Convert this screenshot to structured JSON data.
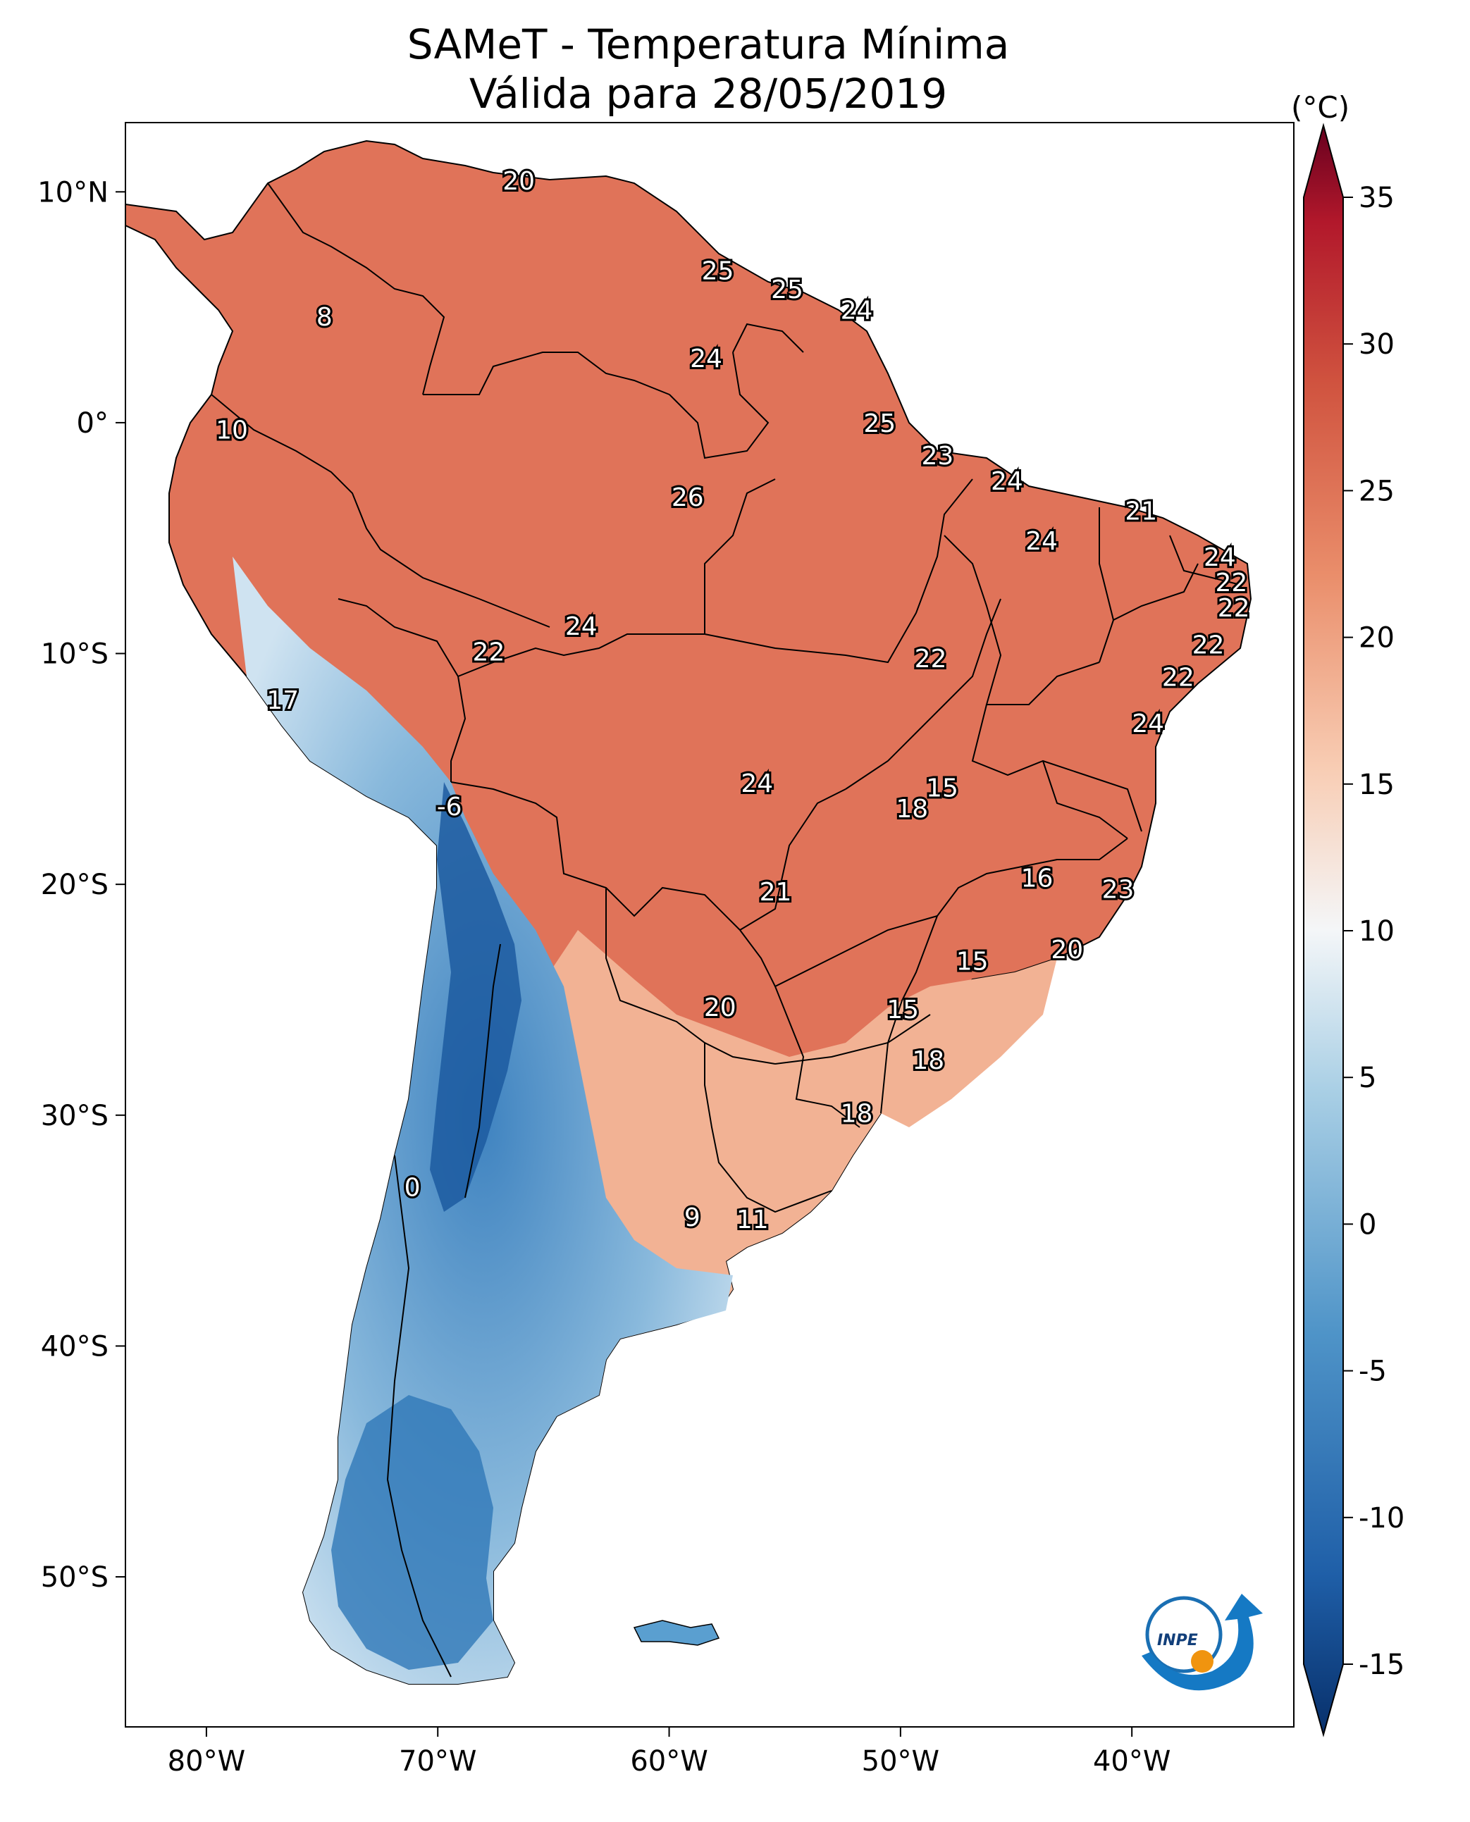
{
  "title": {
    "line1": "SAMeT - Temperatura Mínima",
    "line2": "Válida para 28/05/2019"
  },
  "colorbar": {
    "unit": "(°C)",
    "min": -15,
    "max": 35,
    "ticks": [
      "35",
      "30",
      "25",
      "20",
      "15",
      "10",
      "5",
      "0",
      "-5",
      "-10",
      "-15"
    ],
    "colors": {
      "cold_extreme": "#08306b",
      "cold": "#2166ac",
      "cool": "#67a9cf",
      "mild": "#d1e5f0",
      "neutral": "#f7f7f7",
      "warm": "#fddbc7",
      "hot": "#ef8a62",
      "very_hot": "#b2182b",
      "hot_extreme": "#67001f"
    }
  },
  "axes": {
    "lon_ticks": [
      "80°W",
      "70°W",
      "60°W",
      "50°W",
      "40°W"
    ],
    "lat_ticks": [
      "10°N",
      "0°",
      "10°S",
      "20°S",
      "30°S",
      "40°S",
      "50°S"
    ]
  },
  "contour_labels": [
    {
      "text": "20",
      "lon": -66.5,
      "lat": 10.5
    },
    {
      "text": "8",
      "lon": -74.9,
      "lat": 4.6
    },
    {
      "text": "25",
      "lon": -57.9,
      "lat": 6.6
    },
    {
      "text": "25",
      "lon": -54.9,
      "lat": 5.8
    },
    {
      "text": "24",
      "lon": -51.9,
      "lat": 4.9
    },
    {
      "text": "24",
      "lon": -58.4,
      "lat": 2.8
    },
    {
      "text": "10",
      "lon": -78.9,
      "lat": -0.3
    },
    {
      "text": "25",
      "lon": -50.9,
      "lat": 0.0
    },
    {
      "text": "23",
      "lon": -48.4,
      "lat": -1.4
    },
    {
      "text": "24",
      "lon": -45.4,
      "lat": -2.5
    },
    {
      "text": "26",
      "lon": -59.2,
      "lat": -3.2
    },
    {
      "text": "21",
      "lon": -39.6,
      "lat": -3.8
    },
    {
      "text": "24",
      "lon": -43.9,
      "lat": -5.1
    },
    {
      "text": "24",
      "lon": -36.2,
      "lat": -5.8
    },
    {
      "text": "22",
      "lon": -35.7,
      "lat": -6.9
    },
    {
      "text": "22",
      "lon": -35.6,
      "lat": -8.0
    },
    {
      "text": "24",
      "lon": -63.8,
      "lat": -8.8
    },
    {
      "text": "22",
      "lon": -67.8,
      "lat": -9.9
    },
    {
      "text": "22",
      "lon": -36.7,
      "lat": -9.6
    },
    {
      "text": "22",
      "lon": -48.7,
      "lat": -10.2
    },
    {
      "text": "22",
      "lon": -38.0,
      "lat": -11.0
    },
    {
      "text": "17",
      "lon": -76.7,
      "lat": -12.0
    },
    {
      "text": "24",
      "lon": -39.3,
      "lat": -13.0
    },
    {
      "text": "24",
      "lon": -56.2,
      "lat": -15.6
    },
    {
      "text": "15",
      "lon": -48.2,
      "lat": -15.8
    },
    {
      "text": "18",
      "lon": -49.5,
      "lat": -16.7
    },
    {
      "text": "-6",
      "lon": -69.5,
      "lat": -16.6
    },
    {
      "text": "16",
      "lon": -44.1,
      "lat": -19.7
    },
    {
      "text": "23",
      "lon": -40.6,
      "lat": -20.2
    },
    {
      "text": "21",
      "lon": -55.4,
      "lat": -20.3
    },
    {
      "text": "20",
      "lon": -42.8,
      "lat": -22.8
    },
    {
      "text": "15",
      "lon": -46.9,
      "lat": -23.3
    },
    {
      "text": "20",
      "lon": -57.8,
      "lat": -25.3
    },
    {
      "text": "15",
      "lon": -49.9,
      "lat": -25.4
    },
    {
      "text": "18",
      "lon": -48.8,
      "lat": -27.6
    },
    {
      "text": "18",
      "lon": -51.9,
      "lat": -29.9
    },
    {
      "text": "0",
      "lon": -71.1,
      "lat": -33.1
    },
    {
      "text": "9",
      "lon": -59.0,
      "lat": -34.4
    },
    {
      "text": "11",
      "lon": -56.4,
      "lat": -34.5
    }
  ]
}
